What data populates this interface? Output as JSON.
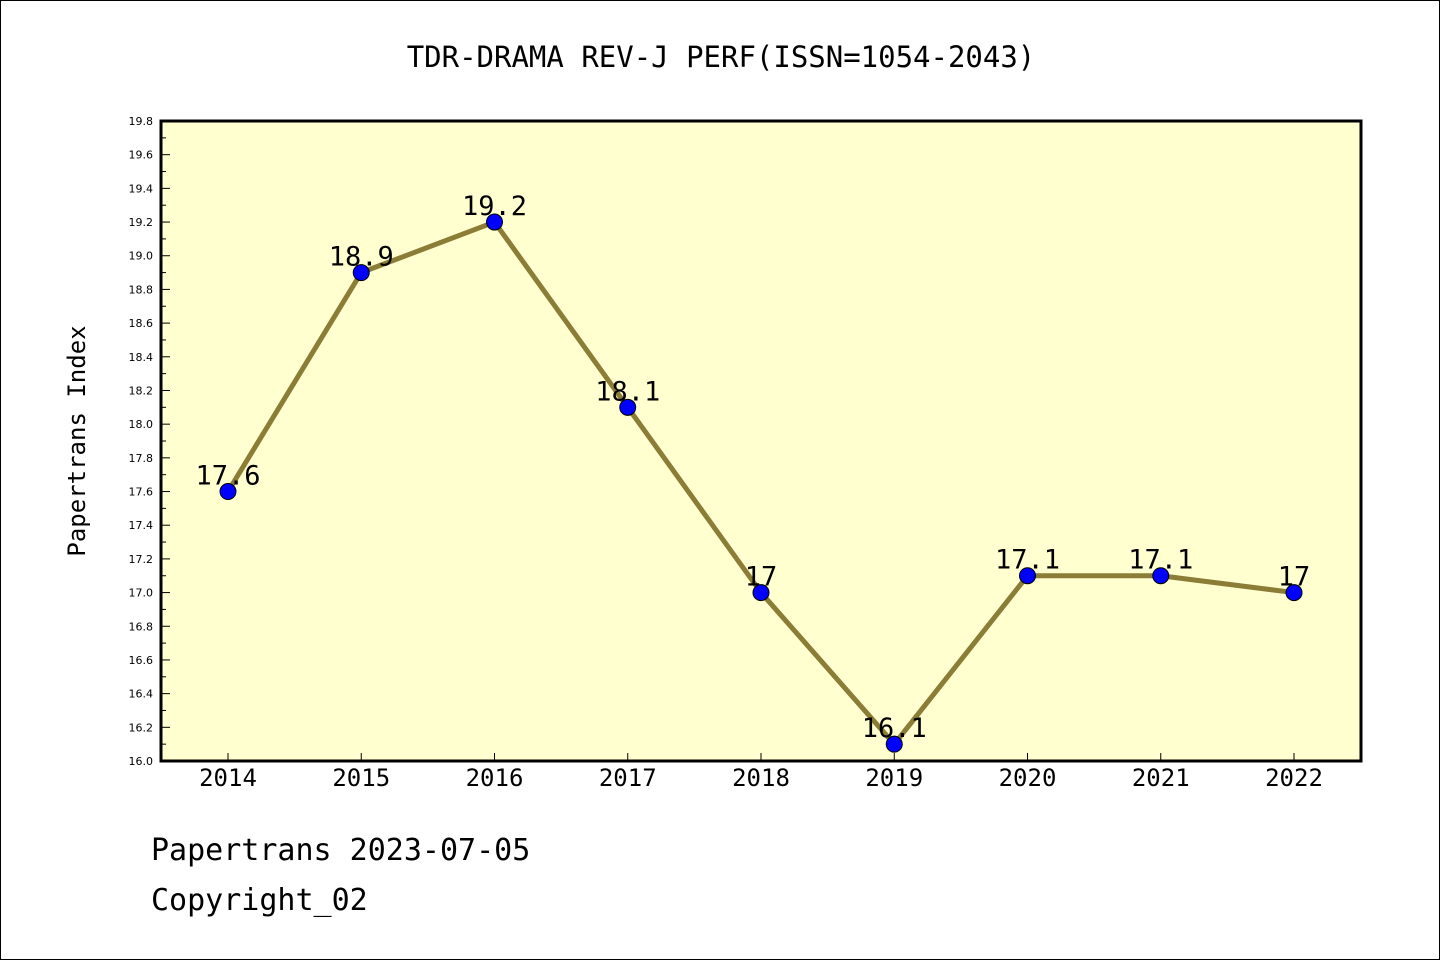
{
  "chart_data": {
    "type": "line",
    "title": "TDR-DRAMA REV-J PERF(ISSN=1054-2043)",
    "xlabel": "",
    "ylabel": "Papertrans Index",
    "ylim": [
      16.0,
      19.8
    ],
    "yticks": [
      "16.0",
      "16.2",
      "16.4",
      "16.6",
      "16.8",
      "17.0",
      "17.2",
      "17.4",
      "17.6",
      "17.8",
      "18.0",
      "18.2",
      "18.4",
      "18.6",
      "18.8",
      "19.0",
      "19.2",
      "19.4",
      "19.6",
      "19.8"
    ],
    "categories": [
      "2014",
      "2015",
      "2016",
      "2017",
      "2018",
      "2019",
      "2020",
      "2021",
      "2022"
    ],
    "series": [
      {
        "values": [
          17.6,
          18.9,
          19.2,
          18.1,
          17.0,
          16.1,
          17.1,
          17.1,
          17.0
        ],
        "labels": [
          "17.6",
          "18.9",
          "19.2",
          "18.1",
          "17",
          "16.1",
          "17.1",
          "17.1",
          "17"
        ]
      }
    ],
    "grid": false,
    "colors": {
      "plot_bg": "#ffffd0",
      "line": "#8b7d35",
      "marker": "#0000ff"
    }
  },
  "footer": {
    "line1": "Papertrans 2023-07-05",
    "line2": "Copyright_02"
  }
}
